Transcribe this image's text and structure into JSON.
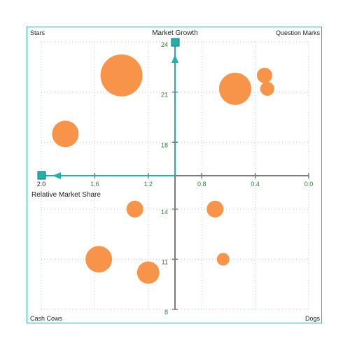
{
  "chart_data": {
    "type": "bubble",
    "title": "",
    "quadrants": {
      "top_left": "Stars",
      "top_right": "Question Marks",
      "bottom_left": "Cash Cows",
      "bottom_right": "Dogs"
    },
    "x_axis": {
      "label": "Relative Market Share",
      "reversed": true,
      "range": [
        0.0,
        2.0
      ],
      "ticks": [
        "2.0",
        "1.6",
        "1.2",
        "0.8",
        "0.4",
        "0.0"
      ],
      "crosses_at": 16
    },
    "y_axis": {
      "label": "Market Growth",
      "range": [
        8,
        24
      ],
      "ticks": [
        "24",
        "21",
        "18",
        "14",
        "11",
        "8"
      ],
      "crosses_at": 1.0
    },
    "grid": true,
    "colors": {
      "bubble": "#f7944a",
      "axis": "#7a7a7a",
      "axis_arrow": "#1fb1ab",
      "grid": "#9ed8d8",
      "tick_label": "#2e7d32"
    },
    "points": [
      {
        "x": 1.4,
        "y": 22.0,
        "size": 30
      },
      {
        "x": 0.55,
        "y": 21.2,
        "size": 23
      },
      {
        "x": 0.33,
        "y": 22.0,
        "size": 11
      },
      {
        "x": 0.31,
        "y": 21.2,
        "size": 10
      },
      {
        "x": 1.82,
        "y": 18.5,
        "size": 19
      },
      {
        "x": 1.3,
        "y": 14.0,
        "size": 12
      },
      {
        "x": 0.7,
        "y": 14.0,
        "size": 12
      },
      {
        "x": 1.57,
        "y": 11.0,
        "size": 19
      },
      {
        "x": 1.2,
        "y": 10.2,
        "size": 16
      },
      {
        "x": 0.64,
        "y": 11.0,
        "size": 9
      }
    ]
  }
}
